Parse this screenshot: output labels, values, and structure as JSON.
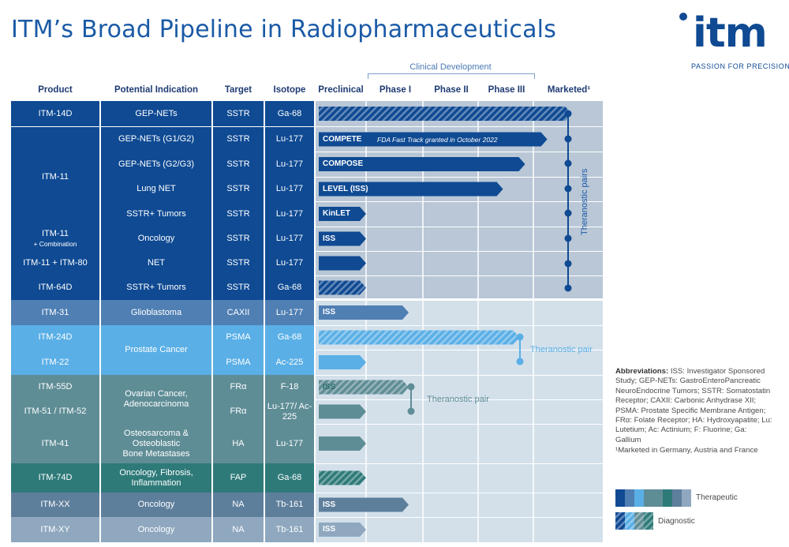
{
  "title": "ITM’s Broad Pipeline in Radiopharmaceuticals",
  "logo": {
    "word": "itm",
    "tagline": "PASSION FOR PRECISION"
  },
  "clinical_development_label": "Clinical Development",
  "headers": {
    "product": "Product",
    "indication": "Potential Indication",
    "target": "Target",
    "isotope": "Isotope",
    "preclinical": "Preclinical",
    "phase1": "Phase I",
    "phase2": "Phase II",
    "phase3": "Phase III",
    "marketed": "Marketed¹"
  },
  "products": [
    {
      "name": "ITM-14D"
    },
    {
      "name": "ITM-11"
    },
    {
      "name": "ITM-11",
      "sub": "+ Combination"
    },
    {
      "name": "ITM-11 + ITM-80"
    },
    {
      "name": "ITM-64D"
    },
    {
      "name": "ITM-31"
    },
    {
      "name": "ITM-24D"
    },
    {
      "name": "ITM-22"
    },
    {
      "name": "ITM-55D"
    },
    {
      "name": "ITM-51 / ITM-52"
    },
    {
      "name": "ITM-41"
    },
    {
      "name": "ITM-74D"
    },
    {
      "name": "ITM-XX"
    },
    {
      "name": "ITM-XY"
    }
  ],
  "indications": [
    "GEP-NETs",
    "GEP-NETs (G1/G2)",
    "GEP-NETs (G2/G3)",
    "Lung NET",
    "SSTR+ Tumors",
    "Oncology",
    "NET",
    "SSTR+ Tumors",
    "Glioblastoma",
    "Prostate Cancer",
    "Ovarian Cancer,\nAdenocarcinoma",
    "Osteosarcoma &\nOsteoblastic\nBone Metastases",
    "Oncology, Fibrosis,\nInflammation",
    "Oncology",
    "Oncology"
  ],
  "rows": [
    {
      "target": "SSTR",
      "isotope": "Ga-68",
      "stage": 4.55,
      "type": "diagnostic",
      "label": "",
      "note": ""
    },
    {
      "target": "SSTR",
      "isotope": "Lu-177",
      "stage": 4.2,
      "type": "therapeutic",
      "label": "COMPETE",
      "note": "FDA Fast Track granted in October 2022"
    },
    {
      "target": "SSTR",
      "isotope": "Lu-177",
      "stage": 3.85,
      "type": "therapeutic",
      "label": "COMPOSE",
      "note": ""
    },
    {
      "target": "SSTR",
      "isotope": "Lu-177",
      "stage": 3.45,
      "type": "therapeutic",
      "label": "LEVEL (ISS)",
      "note": ""
    },
    {
      "target": "SSTR",
      "isotope": "Lu-177",
      "stage": 1.0,
      "type": "therapeutic",
      "label": "KinLET",
      "note": ""
    },
    {
      "target": "SSTR",
      "isotope": "Lu-177",
      "stage": 1.0,
      "type": "therapeutic",
      "label": "ISS",
      "note": ""
    },
    {
      "target": "SSTR",
      "isotope": "Lu-177",
      "stage": 1.0,
      "type": "therapeutic",
      "label": "",
      "note": ""
    },
    {
      "target": "SSTR",
      "isotope": "Ga-68",
      "stage": 1.0,
      "type": "diagnostic",
      "label": "",
      "note": ""
    },
    {
      "target": "CAXII",
      "isotope": "Lu-177",
      "stage": 1.75,
      "type": "therapeutic",
      "label": "ISS",
      "note": ""
    },
    {
      "target": "PSMA",
      "isotope": "Ga-68",
      "stage": 3.75,
      "type": "diagnostic",
      "label": "",
      "note": ""
    },
    {
      "target": "PSMA",
      "isotope": "Ac-225",
      "stage": 1.0,
      "type": "therapeutic",
      "label": "",
      "note": ""
    },
    {
      "target": "FRα",
      "isotope": "F-18",
      "stage": 1.75,
      "type": "diagnostic",
      "label": "ISS",
      "note": ""
    },
    {
      "target": "FRα",
      "isotope": "Lu-177/ Ac-225",
      "stage": 1.0,
      "type": "therapeutic",
      "label": "",
      "note": ""
    },
    {
      "target": "HA",
      "isotope": "Lu-177",
      "stage": 1.0,
      "type": "therapeutic",
      "label": "",
      "note": ""
    },
    {
      "target": "FAP",
      "isotope": "Ga-68",
      "stage": 1.0,
      "type": "diagnostic",
      "label": "",
      "note": ""
    },
    {
      "target": "NA",
      "isotope": "Tb-161",
      "stage": 1.75,
      "type": "therapeutic",
      "label": "ISS",
      "note": ""
    },
    {
      "target": "NA",
      "isotope": "Tb-161",
      "stage": 1.0,
      "type": "therapeutic",
      "label": "ISS",
      "note": ""
    }
  ],
  "pairs": {
    "theranostic_pairs": "Theranostic pairs",
    "theranostic_pair_psma": "Theranostic pair",
    "theranostic_pair_fra": "Theranostic pair"
  },
  "abbreviations_title": "Abbreviations:",
  "abbreviations_text": "ISS: Investigator Sponsored Study; GEP-NETs: GastroEnteroPancreatic NeuroEndocrine Tumors; SSTR: Somatostatin Receptor; CAXII: Carbonic Anhydrase XII; PSMA: Prostate Specific Membrane Antigen; FRα: Folate Receptor; HA: Hydroxyapatite; Lu: Lutetium; Ac: Actinium; F: Fluorine; Ga: Gallium",
  "marketed_note": "¹Marketed in Germany, Austria and France",
  "legend": {
    "therapeutic": "Therapeutic",
    "diagnostic": "Diagnostic"
  },
  "colors": {
    "navy": "#0f4a93",
    "steel": "#4f7fb3",
    "sky": "#5aafe6",
    "teal_grey": "#5f8d96",
    "teal_dark": "#2e7a79",
    "slate": "#5e7f9c",
    "slate_light": "#8fa8bf"
  },
  "chart_data": {
    "type": "table",
    "title": "ITM’s Broad Pipeline in Radiopharmaceuticals",
    "stages": [
      "Preclinical",
      "Phase I",
      "Phase II",
      "Phase III",
      "Marketed"
    ]
  }
}
